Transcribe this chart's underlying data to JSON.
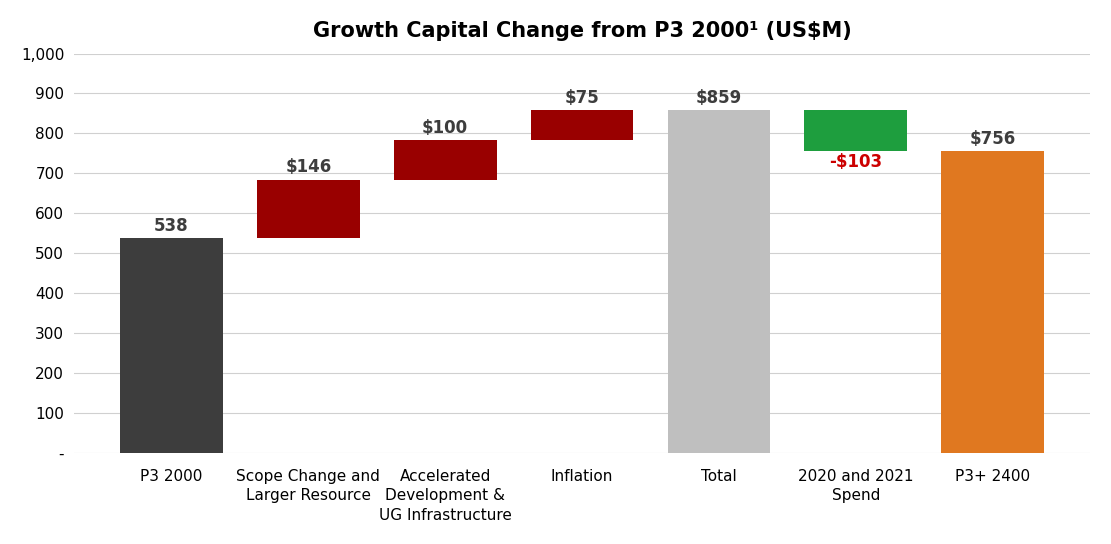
{
  "title": "Growth Capital Change from P3 2000¹ (US$M)",
  "categories": [
    "P3 2000",
    "Scope Change and\nLarger Resource",
    "Accelerated\nDevelopment &\nUG Infrastructure",
    "Inflation",
    "Total",
    "2020 and 2021\nSpend",
    "P3+ 2400"
  ],
  "bar_bottoms": [
    0,
    538,
    684,
    784,
    0,
    756,
    0
  ],
  "bar_heights": [
    538,
    146,
    100,
    75,
    859,
    103,
    756
  ],
  "bar_colors": [
    "#3d3d3d",
    "#990000",
    "#990000",
    "#990000",
    "#bfbfbf",
    "#1e9e3e",
    "#e07820"
  ],
  "labels": [
    "538",
    "$146",
    "$100",
    "$75",
    "$859",
    "-$103",
    "$756"
  ],
  "label_colors": [
    "#3d3d3d",
    "#3d3d3d",
    "#3d3d3d",
    "#3d3d3d",
    "#3d3d3d",
    "#cc0000",
    "#3d3d3d"
  ],
  "ylim": [
    0,
    1000
  ],
  "yticks": [
    0,
    100,
    200,
    300,
    400,
    500,
    600,
    700,
    800,
    900,
    1000
  ],
  "ytick_labels": [
    "-",
    "100",
    "200",
    "300",
    "400",
    "500",
    "600",
    "700",
    "800",
    "900",
    "1,000"
  ],
  "background_color": "#ffffff",
  "grid_color": "#d0d0d0",
  "title_fontsize": 15,
  "label_fontsize": 12,
  "tick_fontsize": 11,
  "bar_width": 0.75
}
